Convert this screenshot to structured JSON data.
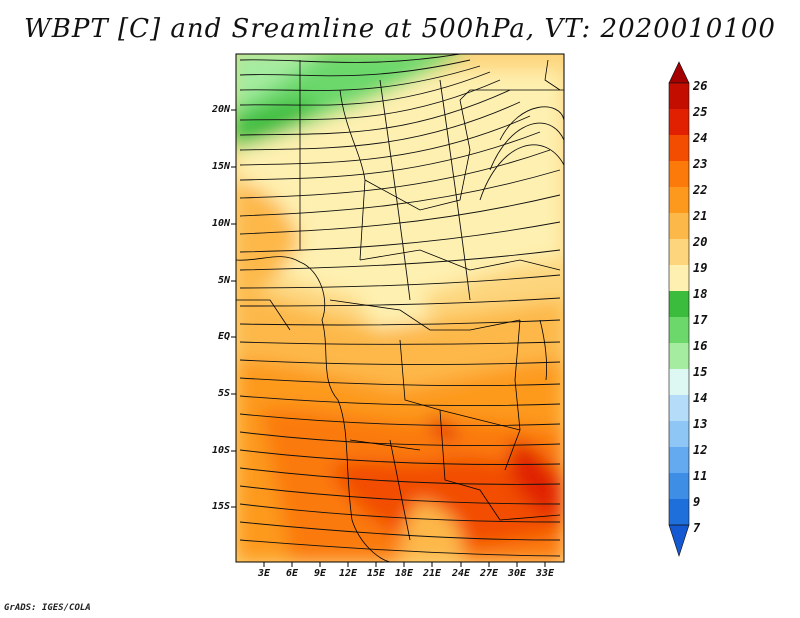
{
  "title": "WBPT [C] and Sreamline at 500hPa, VT: 2020010100",
  "credit": "GrADS: IGES/COLA",
  "map": {
    "variable": "Wet-bulb potential temperature [C]",
    "level": "500hPa",
    "lat_labels": [
      "20N",
      "15N",
      "10N",
      "5N",
      "EQ",
      "5S",
      "10S",
      "15S"
    ],
    "lon_labels": [
      "3E",
      "6E",
      "9E",
      "12E",
      "15E",
      "18E",
      "21E",
      "24E",
      "27E",
      "30E",
      "33E"
    ],
    "lat_range": [
      -19,
      24
    ],
    "lon_range": [
      0,
      35
    ]
  },
  "colorbar": {
    "labels": [
      "26",
      "25",
      "24",
      "23",
      "22",
      "21",
      "20",
      "19",
      "18",
      "17",
      "16",
      "15",
      "14",
      "13",
      "12",
      "11",
      "9",
      "7"
    ],
    "colors": [
      "#a50000",
      "#c20d00",
      "#e02000",
      "#f24d00",
      "#fb7a0a",
      "#fd9a1e",
      "#fdb84a",
      "#fdd57d",
      "#fef0b0",
      "#3cbc3c",
      "#6cd86c",
      "#a5eca0",
      "#ddf8f2",
      "#b5dcf8",
      "#8ec6f5",
      "#64aaf0",
      "#3f8ee6",
      "#1e6fdc",
      "#1458d2"
    ]
  }
}
